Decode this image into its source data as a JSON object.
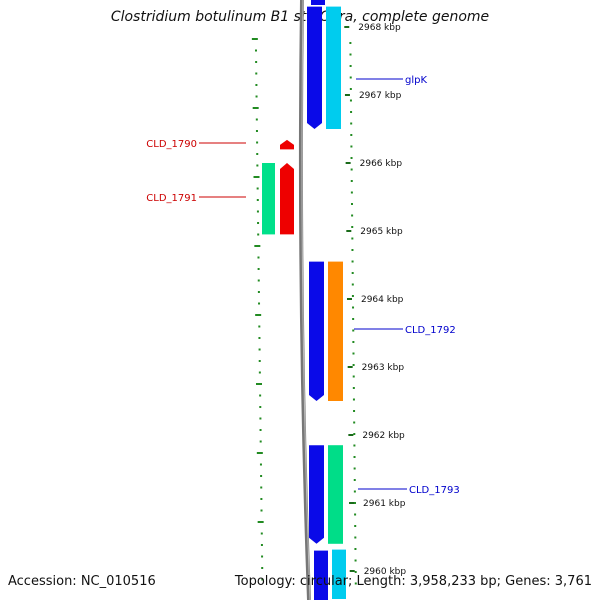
{
  "title": "Clostridium botulinum B1 str. Okra, complete genome",
  "accession": "Accession: NC_010516",
  "stats": "Topology: circular; Length: 3,958,233 bp; Genes: 3,761",
  "kbp_labels": [
    {
      "text": "2968 kbp",
      "pos": 2968
    },
    {
      "text": "2967 kbp",
      "pos": 2967
    },
    {
      "text": "2966 kbp",
      "pos": 2966
    },
    {
      "text": "2965 kbp",
      "pos": 2965
    },
    {
      "text": "2964 kbp",
      "pos": 2964
    },
    {
      "text": "2963 kbp",
      "pos": 2963
    },
    {
      "text": "2962 kbp",
      "pos": 2962
    },
    {
      "text": "2961 kbp",
      "pos": 2961
    },
    {
      "text": "2960 kbp",
      "pos": 2960
    }
  ],
  "genes": [
    {
      "label": "glpK",
      "start": 2966.5,
      "end": 2968.3,
      "strand": "forward",
      "fill": "#00ccee",
      "label_color": "#0000cc",
      "cds_color": "#0a0ae8"
    },
    {
      "label": "CLD_1790",
      "start": 2966.2,
      "end": 2966.34,
      "strand": "reverse",
      "fill": "#ee0000",
      "label_color": "#cc0000",
      "cds_color": "#ee0000"
    },
    {
      "label": "CLD_1791",
      "start": 2964.95,
      "end": 2966.0,
      "strand": "reverse",
      "fill": "#ee0000",
      "label_color": "#cc0000",
      "cds_color": "#00e08a"
    },
    {
      "label": "CLD_1792",
      "start": 2962.5,
      "end": 2964.55,
      "strand": "forward",
      "fill": "#ff8800",
      "label_color": "#0000cc",
      "cds_color": "#0a0ae8"
    },
    {
      "label": "CLD_1793",
      "start": 2960.4,
      "end": 2961.85,
      "strand": "forward",
      "fill": "#00dd88",
      "label_color": "#0000cc",
      "cds_color": "#0a0ae8"
    }
  ],
  "lower_gene": {
    "start": 2959.5,
    "end": 2960.3,
    "fill": "#00ccee",
    "cds_color": "#0a0ae8"
  },
  "colors": {
    "backbone": "#777777",
    "gc_skew": "#228b22",
    "forward_label": "#0000cc",
    "reverse_label": "#cc0000"
  }
}
